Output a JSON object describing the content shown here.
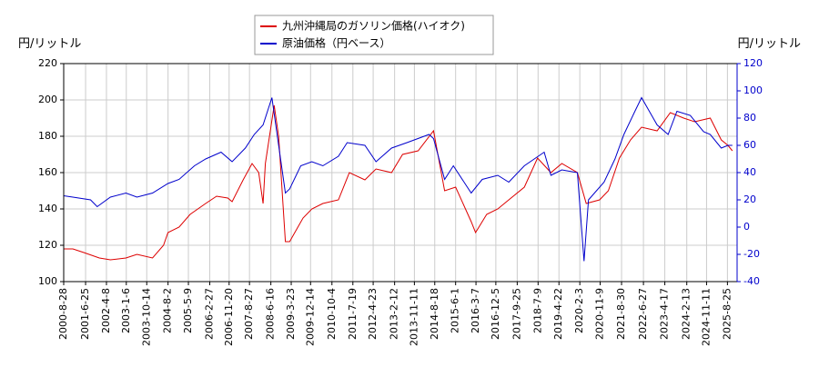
{
  "chart_data": {
    "type": "line",
    "y_label": "円/リットル",
    "y2_label": "円/リットル",
    "legend_position": "upper center",
    "grid": true,
    "xlim": [
      "2000-8-28",
      "2026-1-5"
    ],
    "xticks": [
      "2000-8-28",
      "2001-6-25",
      "2002-4-8",
      "2003-1-6",
      "2003-10-14",
      "2004-8-2",
      "2005-5-9",
      "2006-2-27",
      "2006-11-20",
      "2007-8-27",
      "2008-6-16",
      "2009-3-23",
      "2009-12-14",
      "2010-10-4",
      "2011-7-19",
      "2012-4-23",
      "2013-2-12",
      "2013-11-11",
      "2014-8-18",
      "2015-6-1",
      "2016-3-7",
      "2016-12-5",
      "2017-9-25",
      "2018-7-9",
      "2019-4-22",
      "2020-2-3",
      "2020-11-9",
      "2021-8-30",
      "2022-6-27",
      "2023-4-17",
      "2024-2-13",
      "2024-11-11",
      "2025-8-25"
    ],
    "ylim": [
      100,
      220
    ],
    "yticks": [
      100,
      120,
      140,
      160,
      180,
      200,
      220
    ],
    "y2lim": [
      -40,
      120
    ],
    "y2ticks": [
      -40,
      -20,
      0,
      20,
      40,
      60,
      80,
      100,
      120
    ],
    "series": [
      {
        "name": "九州沖縄局のガソリン価格(ハイオク)",
        "color": "#dd0000",
        "x": [
          "2000-8-28",
          "2001-1-1",
          "2001-6-1",
          "2002-1-1",
          "2002-6-1",
          "2003-1-1",
          "2003-6-1",
          "2004-1-1",
          "2004-6-1",
          "2004-8-1",
          "2005-1-1",
          "2005-6-1",
          "2006-1-1",
          "2006-6-1",
          "2006-11-1",
          "2007-1-1",
          "2007-6-1",
          "2007-10-1",
          "2008-1-1",
          "2008-3-1",
          "2008-4-1",
          "2008-8-1",
          "2008-10-1",
          "2009-1-1",
          "2009-3-1",
          "2009-9-1",
          "2010-1-1",
          "2010-6-1",
          "2011-1-1",
          "2011-6-1",
          "2012-1-1",
          "2012-6-1",
          "2013-1-1",
          "2013-6-1",
          "2014-1-1",
          "2014-8-1",
          "2015-1-1",
          "2015-6-1",
          "2016-1-1",
          "2016-3-1",
          "2016-8-1",
          "2017-1-1",
          "2017-6-1",
          "2018-1-1",
          "2018-7-1",
          "2019-1-1",
          "2019-6-1",
          "2020-1-1",
          "2020-5-1",
          "2020-11-1",
          "2021-3-1",
          "2021-8-1",
          "2022-1-1",
          "2022-6-1",
          "2023-1-1",
          "2023-7-1",
          "2024-1-1",
          "2024-6-1",
          "2025-1-1",
          "2025-6-1",
          "2025-9-1",
          "2025-11-1"
        ],
        "values": [
          118,
          118,
          116,
          113,
          112,
          113,
          115,
          113,
          120,
          127,
          130,
          137,
          143,
          147,
          146,
          144,
          156,
          165,
          160,
          143,
          165,
          197,
          180,
          122,
          122,
          135,
          140,
          143,
          145,
          160,
          156,
          162,
          160,
          170,
          172,
          183,
          150,
          152,
          133,
          127,
          137,
          140,
          145,
          152,
          168,
          160,
          165,
          160,
          143,
          145,
          150,
          168,
          178,
          185,
          183,
          193,
          190,
          188,
          190,
          178,
          175,
          172
        ]
      },
      {
        "name": "原油価格（円ベース）",
        "color": "#0000cc",
        "axis": "y2",
        "x": [
          "2000-8-28",
          "2001-1-1",
          "2001-9-1",
          "2001-12-1",
          "2002-6-1",
          "2003-1-1",
          "2003-6-1",
          "2004-1-1",
          "2004-8-1",
          "2005-1-1",
          "2005-8-1",
          "2006-1-1",
          "2006-8-1",
          "2007-1-1",
          "2007-7-1",
          "2007-11-1",
          "2008-3-1",
          "2008-7-1",
          "2008-10-1",
          "2009-1-1",
          "2009-3-1",
          "2009-8-1",
          "2010-1-1",
          "2010-6-1",
          "2011-1-1",
          "2011-5-1",
          "2012-1-1",
          "2012-6-1",
          "2013-1-1",
          "2013-8-1",
          "2014-6-1",
          "2014-8-1",
          "2015-1-1",
          "2015-5-1",
          "2016-1-1",
          "2016-6-1",
          "2017-1-1",
          "2017-6-1",
          "2018-1-1",
          "2018-10-1",
          "2019-1-1",
          "2019-6-1",
          "2020-1-1",
          "2020-4-1",
          "2020-6-1",
          "2021-1-1",
          "2021-6-1",
          "2021-10-1",
          "2022-3-1",
          "2022-6-1",
          "2023-1-1",
          "2023-6-1",
          "2023-10-1",
          "2024-4-1",
          "2024-10-1",
          "2025-1-1",
          "2025-6-1",
          "2025-9-1",
          "2025-11-1"
        ],
        "values": [
          23,
          22,
          20,
          15,
          22,
          25,
          22,
          25,
          32,
          35,
          45,
          50,
          55,
          48,
          58,
          68,
          75,
          95,
          60,
          25,
          28,
          45,
          48,
          45,
          52,
          62,
          60,
          48,
          58,
          62,
          68,
          65,
          35,
          45,
          25,
          35,
          38,
          33,
          45,
          55,
          38,
          42,
          40,
          -25,
          20,
          33,
          50,
          68,
          85,
          95,
          75,
          68,
          85,
          82,
          70,
          68,
          58,
          60,
          60
        ]
      }
    ]
  }
}
